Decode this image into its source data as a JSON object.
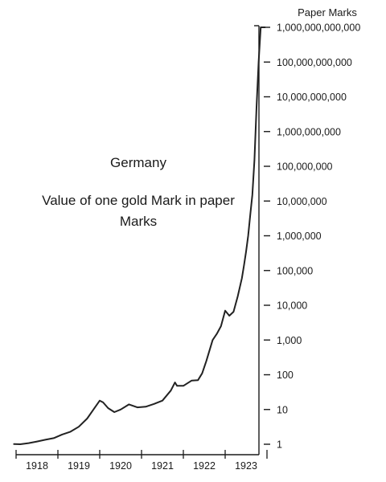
{
  "chart_data": {
    "type": "line",
    "title": "Germany",
    "subtitle": "Value of one gold Mark in paper Marks",
    "ylabel": "Paper Marks",
    "yscale": "log",
    "ylim": [
      1,
      1000000000000
    ],
    "xlim": [
      1918,
      1923.98
    ],
    "x_tick_labels": [
      "1918",
      "1919",
      "1920",
      "1921",
      "1922",
      "1923"
    ],
    "y_tick_values": [
      1,
      10,
      100,
      1000,
      10000,
      100000,
      1000000,
      10000000,
      100000000,
      1000000000,
      10000000000,
      100000000000,
      1000000000000
    ],
    "y_tick_labels": [
      "1",
      "10",
      "100",
      "1,000",
      "10,000",
      "100,000",
      "1,000,000",
      "10,000,000",
      "100,000,000",
      "1,000,000,000",
      "10,000,000,000",
      "100,000,000,000",
      "1,000,000,000,000"
    ],
    "grid": false,
    "series": [
      {
        "x": [
          1917.95,
          1918.1,
          1918.3,
          1918.5,
          1918.7,
          1918.9,
          1919.1,
          1919.3,
          1919.5,
          1919.7,
          1919.85,
          1920.0,
          1920.08,
          1920.2,
          1920.35,
          1920.5,
          1920.7,
          1920.9,
          1921.1,
          1921.3,
          1921.5,
          1921.7,
          1921.8,
          1921.85,
          1922.0,
          1922.2,
          1922.35,
          1922.45,
          1922.55,
          1922.7,
          1922.8,
          1922.9,
          1923.0,
          1923.1,
          1923.2,
          1923.3,
          1923.4,
          1923.45,
          1923.5,
          1923.55,
          1923.6,
          1923.65,
          1923.7,
          1923.75,
          1923.8,
          1923.85,
          1923.9,
          1923.95
        ],
        "y": [
          1.01,
          1.0,
          1.08,
          1.2,
          1.35,
          1.5,
          1.9,
          2.3,
          3.2,
          5.5,
          10,
          18,
          16,
          11,
          8.4,
          10,
          14,
          11.5,
          12,
          14.5,
          18,
          35,
          60,
          48,
          48,
          68,
          70,
          110,
          250,
          1000,
          1500,
          2500,
          7000,
          5000,
          6500,
          18000,
          60000,
          140000,
          350000,
          1000000,
          4000000,
          15000000,
          150000000,
          5000000000,
          100000000000,
          1000000000000,
          1000000000000,
          1000000000000
        ]
      }
    ]
  }
}
